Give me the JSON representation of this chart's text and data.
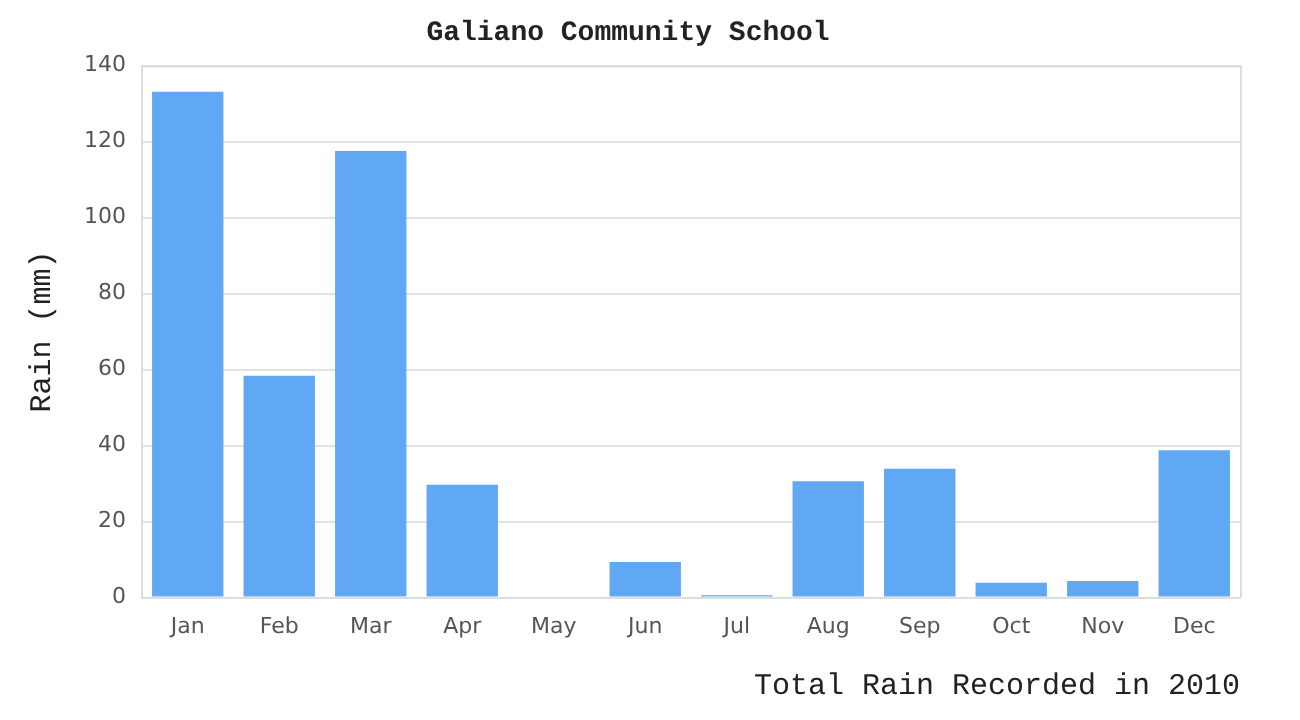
{
  "chart_data": {
    "type": "bar",
    "title": "Galiano Community School",
    "xlabel": "Total Rain Recorded in 2010",
    "ylabel": "Rain (mm)",
    "categories": [
      "Jan",
      "Feb",
      "Mar",
      "Apr",
      "May",
      "Jun",
      "Jul",
      "Aug",
      "Sep",
      "Oct",
      "Nov",
      "Dec"
    ],
    "values": [
      133.1,
      58.4,
      117.5,
      29.7,
      0,
      9.4,
      0.6,
      30.6,
      33.9,
      3.9,
      4.4,
      38.8
    ],
    "color": "#60a8f4",
    "ylim": [
      0,
      140
    ],
    "yticks": [
      0,
      20,
      40,
      60,
      80,
      100,
      120,
      140
    ],
    "grid": "y",
    "legend": false
  }
}
